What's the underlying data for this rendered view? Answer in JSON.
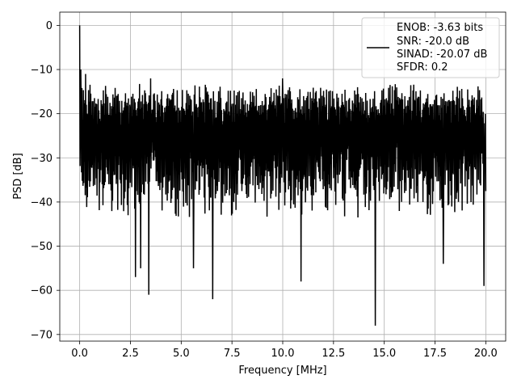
{
  "chart_data": {
    "type": "line",
    "title": "",
    "xlabel": "Frequency [MHz]",
    "ylabel": "PSD [dB]",
    "xlim": [
      -0.98,
      20.98
    ],
    "ylim": [
      -71.5,
      3.0
    ],
    "xticks": [
      0.0,
      2.5,
      5.0,
      7.5,
      10.0,
      12.5,
      15.0,
      17.5,
      20.0
    ],
    "xtick_labels": [
      "0.0",
      "2.5",
      "5.0",
      "7.5",
      "10.0",
      "12.5",
      "15.0",
      "17.5",
      "20.0"
    ],
    "yticks": [
      0,
      -10,
      -20,
      -30,
      -40,
      -50,
      -60,
      -70
    ],
    "ytick_labels": [
      "0",
      "−10",
      "−20",
      "−30",
      "−40",
      "−50",
      "−60",
      "−70"
    ],
    "grid": true,
    "legend_position": "top-right",
    "line_color": "#000000",
    "legend_entries": [
      "ENOB: -3.63 bits",
      "SNR: -20.0 dB",
      "SINAD: -20.07 dB",
      "SFDR: 0.2"
    ],
    "series": [
      {
        "x_range": [
          0.0,
          20.0
        ],
        "n_points": 1100,
        "peak_at_dc": 0.0,
        "upper_envelope_typical": -15,
        "lower_envelope_typical": -41,
        "notable_maxima": [
          [
            0.05,
            -10.0
          ],
          [
            3.5,
            -12.0
          ],
          [
            10.0,
            -12.0
          ],
          [
            0.3,
            -11.0
          ]
        ],
        "notable_minima": [
          [
            2.75,
            -57.0
          ],
          [
            3.4,
            -61.0
          ],
          [
            6.55,
            -62.0
          ],
          [
            14.55,
            -68.0
          ],
          [
            10.9,
            -58.0
          ],
          [
            19.9,
            -59.0
          ],
          [
            5.6,
            -55.0
          ],
          [
            17.9,
            -54.0
          ],
          [
            3.0,
            -55.0
          ]
        ]
      }
    ]
  }
}
